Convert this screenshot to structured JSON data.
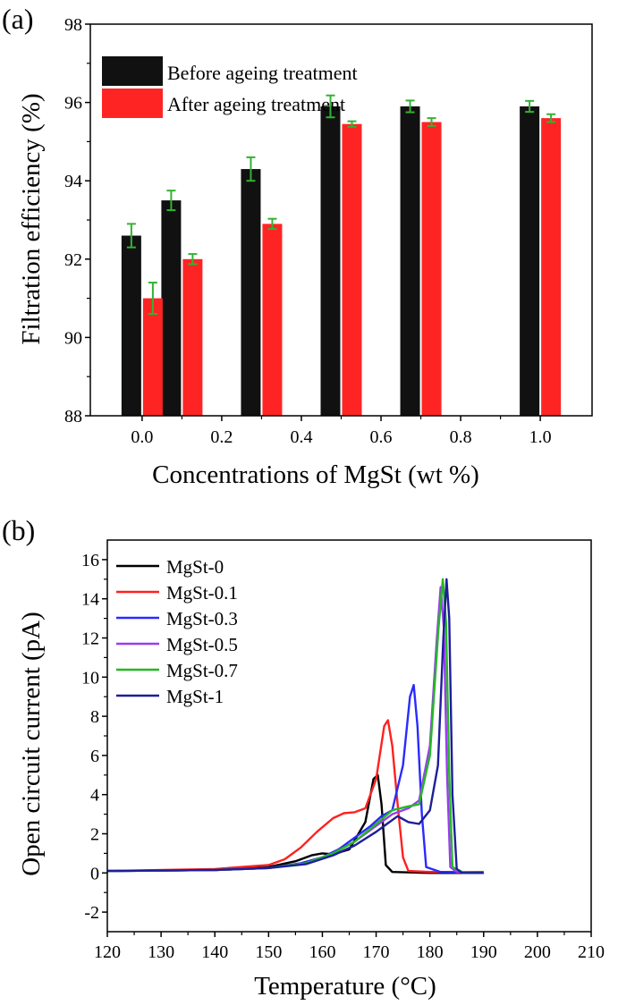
{
  "chart_data": [
    {
      "panel_label": "(a)",
      "type": "bar",
      "xlabel": "Concentrations of MgSt (wt %)",
      "ylabel": "Filtration efficiency (%)",
      "xlim": [
        -0.13,
        1.13
      ],
      "ylim": [
        88,
        98
      ],
      "x_ticks": [
        "0.0",
        "0.2",
        "0.4",
        "0.6",
        "0.8",
        "1.0"
      ],
      "y_ticks": [
        "88",
        "90",
        "92",
        "94",
        "96",
        "98"
      ],
      "categories": [
        0.0,
        0.1,
        0.3,
        0.5,
        0.7,
        1.0
      ],
      "series": [
        {
          "name": "Before ageing treatment",
          "color": "#111111",
          "values": [
            92.6,
            93.5,
            94.3,
            95.9,
            95.9,
            95.9
          ],
          "errors": [
            0.3,
            0.25,
            0.3,
            0.28,
            0.15,
            0.14
          ]
        },
        {
          "name": "After ageing treatment",
          "color": "#ff2424",
          "values": [
            91.0,
            92.0,
            92.9,
            95.45,
            95.5,
            95.6
          ],
          "errors": [
            0.4,
            0.13,
            0.13,
            0.07,
            0.1,
            0.1
          ]
        }
      ],
      "errorbar_color": "#33b233"
    },
    {
      "panel_label": "(b)",
      "type": "line",
      "xlabel": "Temperature (°C)",
      "ylabel": "Open circuit current (pA)",
      "xlim": [
        120,
        210
      ],
      "ylim": [
        -3,
        17
      ],
      "x_ticks": [
        "120",
        "130",
        "140",
        "150",
        "160",
        "170",
        "180",
        "190",
        "200",
        "210"
      ],
      "y_ticks": [
        "-2",
        "0",
        "2",
        "4",
        "6",
        "8",
        "10",
        "12",
        "14",
        "16"
      ],
      "series": [
        {
          "name": "MgSt-0",
          "color": "#000000",
          "x": [
            120,
            140,
            150,
            155,
            158,
            160,
            162,
            165,
            168,
            169.5,
            170.3,
            171,
            171.8,
            173,
            180,
            190
          ],
          "y": [
            0.1,
            0.15,
            0.3,
            0.6,
            0.9,
            1.0,
            0.95,
            1.2,
            2.6,
            4.8,
            5.0,
            3.5,
            0.4,
            0.05,
            0.0,
            0.0
          ]
        },
        {
          "name": "MgSt-0.1",
          "color": "#ff2020",
          "x": [
            120,
            140,
            150,
            153,
            156,
            159,
            162,
            164,
            166,
            168,
            170,
            171.5,
            172.2,
            173,
            174,
            175,
            176,
            180,
            190
          ],
          "y": [
            0.1,
            0.2,
            0.4,
            0.7,
            1.3,
            2.1,
            2.8,
            3.05,
            3.1,
            3.3,
            4.8,
            7.5,
            7.8,
            6.5,
            3.5,
            0.8,
            0.1,
            0.05,
            0.05
          ]
        },
        {
          "name": "MgSt-0.3",
          "color": "#2a2aff",
          "x": [
            120,
            140,
            150,
            156,
            160,
            163,
            166,
            169,
            171,
            173,
            175,
            176.3,
            177,
            177.7,
            178.5,
            179.3,
            182,
            190
          ],
          "y": [
            0.1,
            0.15,
            0.25,
            0.5,
            0.8,
            1.2,
            1.8,
            2.4,
            2.9,
            3.2,
            5.5,
            9.0,
            9.6,
            7.5,
            3.0,
            0.3,
            0.05,
            0.0
          ]
        },
        {
          "name": "MgSt-0.5",
          "color": "#9b3cf0",
          "x": [
            120,
            140,
            150,
            157,
            162,
            166,
            170,
            173,
            176,
            178,
            180,
            181.3,
            182,
            182.6,
            183.2,
            183.8,
            185,
            190
          ],
          "y": [
            0.1,
            0.15,
            0.25,
            0.5,
            1.0,
            1.6,
            2.4,
            3.0,
            3.3,
            3.7,
            6.5,
            12.0,
            14.6,
            12.5,
            5.0,
            0.3,
            0.05,
            0.0
          ]
        },
        {
          "name": "MgSt-0.7",
          "color": "#23b823",
          "x": [
            120,
            140,
            150,
            157,
            162,
            166,
            170,
            173,
            176,
            178,
            180,
            181.6,
            182.4,
            183.0,
            183.6,
            184.2,
            186,
            190
          ],
          "y": [
            0.1,
            0.15,
            0.25,
            0.5,
            1.0,
            1.6,
            2.5,
            3.2,
            3.4,
            3.5,
            6.0,
            12.5,
            15.0,
            12.8,
            5.0,
            0.3,
            0.05,
            0.0
          ]
        },
        {
          "name": "MgSt-1",
          "color": "#1e1e99",
          "x": [
            120,
            140,
            150,
            157,
            162,
            166,
            170,
            172,
            174,
            176,
            178,
            180,
            181.5,
            182.5,
            183.1,
            183.6,
            184.2,
            185,
            186,
            190
          ],
          "y": [
            0.1,
            0.15,
            0.25,
            0.45,
            0.9,
            1.4,
            2.1,
            2.5,
            2.9,
            2.6,
            2.5,
            3.2,
            5.5,
            12.0,
            15.0,
            13.0,
            4.0,
            0.2,
            0.0,
            0.0
          ]
        }
      ]
    }
  ]
}
